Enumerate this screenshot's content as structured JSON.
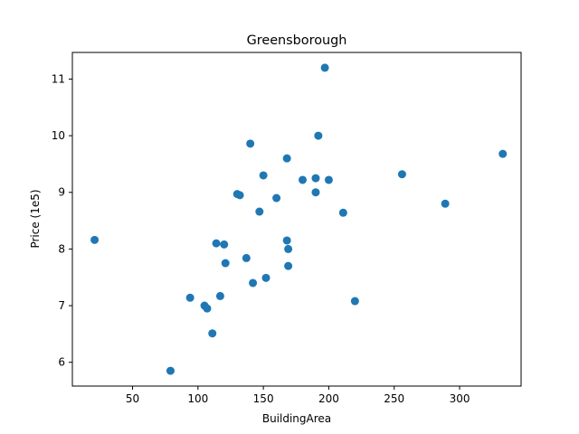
{
  "chart_data": {
    "type": "scatter",
    "title": "Greensborough",
    "xlabel": "BuildingArea",
    "ylabel": "Price (1e5)",
    "xlim": [
      4,
      347
    ],
    "ylim": [
      5.58,
      11.47
    ],
    "xticks": [
      50,
      100,
      150,
      200,
      250,
      300
    ],
    "yticks": [
      6,
      7,
      8,
      9,
      10,
      11
    ],
    "grid": false,
    "color": "#1f77b4",
    "points": [
      {
        "x": 21,
        "y": 8.16
      },
      {
        "x": 79,
        "y": 5.85
      },
      {
        "x": 94,
        "y": 7.14
      },
      {
        "x": 105,
        "y": 7.0
      },
      {
        "x": 107,
        "y": 6.95
      },
      {
        "x": 111,
        "y": 6.51
      },
      {
        "x": 114,
        "y": 8.1
      },
      {
        "x": 117,
        "y": 7.17
      },
      {
        "x": 120,
        "y": 8.08
      },
      {
        "x": 121,
        "y": 7.75
      },
      {
        "x": 130,
        "y": 8.97
      },
      {
        "x": 132,
        "y": 8.95
      },
      {
        "x": 137,
        "y": 7.84
      },
      {
        "x": 140,
        "y": 9.86
      },
      {
        "x": 142,
        "y": 7.4
      },
      {
        "x": 147,
        "y": 8.66
      },
      {
        "x": 150,
        "y": 9.3
      },
      {
        "x": 152,
        "y": 7.49
      },
      {
        "x": 160,
        "y": 8.9
      },
      {
        "x": 168,
        "y": 9.6
      },
      {
        "x": 168,
        "y": 8.15
      },
      {
        "x": 169,
        "y": 8.0
      },
      {
        "x": 169,
        "y": 7.7
      },
      {
        "x": 180,
        "y": 9.22
      },
      {
        "x": 190,
        "y": 9.25
      },
      {
        "x": 190,
        "y": 9.0
      },
      {
        "x": 192,
        "y": 10.0
      },
      {
        "x": 197,
        "y": 11.2
      },
      {
        "x": 200,
        "y": 9.22
      },
      {
        "x": 211,
        "y": 8.64
      },
      {
        "x": 220,
        "y": 7.08
      },
      {
        "x": 256,
        "y": 9.32
      },
      {
        "x": 289,
        "y": 8.8
      },
      {
        "x": 333,
        "y": 9.68
      }
    ]
  }
}
